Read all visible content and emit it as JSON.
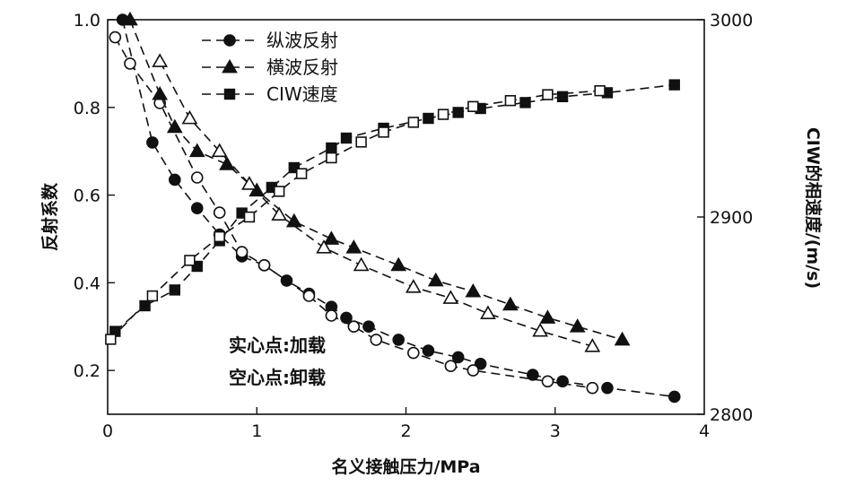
{
  "chart_data": {
    "type": "line",
    "xlabel": "名义接触压力/MPa",
    "ylabel_left": "反射系数",
    "ylabel_right": "CIW的相速度/(m/s)",
    "xlim": [
      0,
      4
    ],
    "ylim_left": [
      0.1,
      1.0
    ],
    "ylim_right": [
      2800,
      3000
    ],
    "x_ticks": [
      0,
      1,
      2,
      3,
      4
    ],
    "x_tick_labels": [
      "0",
      "1",
      "2",
      "3",
      "4"
    ],
    "y_left_ticks": [
      0.2,
      0.4,
      0.6,
      0.8,
      1.0
    ],
    "y_left_tick_labels": [
      "0.2",
      "0.4",
      "0.6",
      "0.8",
      "1.0"
    ],
    "y_right_ticks": [
      2800,
      2900,
      3000
    ],
    "y_right_tick_labels": [
      "2800",
      "2900",
      "3000"
    ],
    "legend_position": "top-center",
    "legend": [
      {
        "label": "纵波反射",
        "marker": "circle"
      },
      {
        "label": "横波反射",
        "marker": "triangle"
      },
      {
        "label": "CIW速度",
        "marker": "square"
      }
    ],
    "annotations": [
      "实心点:加载",
      "空心点:卸载"
    ],
    "series": [
      {
        "label_ref": 0,
        "filled": true,
        "axis": "left",
        "marker": "circle",
        "x": [
          0.1,
          0.3,
          0.45,
          0.6,
          0.75,
          0.9,
          1.05,
          1.2,
          1.35,
          1.5,
          1.6,
          1.75,
          1.95,
          2.15,
          2.35,
          2.5,
          2.85,
          3.05,
          3.35,
          3.8
        ],
        "y": [
          1.0,
          0.72,
          0.635,
          0.57,
          0.51,
          0.46,
          0.44,
          0.405,
          0.375,
          0.345,
          0.32,
          0.3,
          0.27,
          0.245,
          0.23,
          0.215,
          0.19,
          0.175,
          0.16,
          0.14
        ]
      },
      {
        "label_ref": 0,
        "filled": false,
        "axis": "left",
        "marker": "circle",
        "x": [
          0.05,
          0.15,
          0.35,
          0.6,
          0.75,
          0.9,
          1.05,
          1.35,
          1.5,
          1.65,
          1.8,
          2.05,
          2.3,
          2.45,
          2.95,
          3.25
        ],
        "y": [
          0.96,
          0.9,
          0.81,
          0.64,
          0.56,
          0.47,
          0.44,
          0.37,
          0.325,
          0.3,
          0.27,
          0.24,
          0.21,
          0.2,
          0.175,
          0.16
        ]
      },
      {
        "label_ref": 1,
        "filled": true,
        "axis": "left",
        "marker": "triangle",
        "x": [
          0.15,
          0.35,
          0.45,
          0.6,
          0.8,
          1.0,
          1.25,
          1.5,
          1.65,
          1.95,
          2.2,
          2.45,
          2.7,
          2.95,
          3.15,
          3.45
        ],
        "y": [
          1.0,
          0.83,
          0.755,
          0.7,
          0.67,
          0.61,
          0.54,
          0.5,
          0.48,
          0.44,
          0.405,
          0.38,
          0.35,
          0.32,
          0.3,
          0.27
        ]
      },
      {
        "label_ref": 1,
        "filled": false,
        "axis": "left",
        "marker": "triangle",
        "x": [
          0.35,
          0.55,
          0.75,
          0.95,
          1.15,
          1.45,
          1.7,
          2.05,
          2.3,
          2.55,
          2.9,
          3.25
        ],
        "y": [
          0.905,
          0.775,
          0.7,
          0.625,
          0.555,
          0.48,
          0.44,
          0.39,
          0.365,
          0.33,
          0.29,
          0.255
        ]
      },
      {
        "label_ref": 2,
        "filled": true,
        "axis": "right",
        "marker": "square",
        "x": [
          0.05,
          0.25,
          0.45,
          0.6,
          0.75,
          0.9,
          1.1,
          1.25,
          1.5,
          1.6,
          1.85,
          2.15,
          2.35,
          2.5,
          2.8,
          3.05,
          3.35,
          3.8
        ],
        "y": [
          2842,
          2855,
          2863,
          2875,
          2888,
          2902,
          2915,
          2925,
          2935,
          2940,
          2945,
          2950,
          2953,
          2955,
          2958,
          2961,
          2963,
          2967
        ]
      },
      {
        "label_ref": 2,
        "filled": false,
        "axis": "right",
        "marker": "square",
        "x": [
          0.02,
          0.3,
          0.55,
          0.75,
          0.95,
          1.15,
          1.3,
          1.5,
          1.7,
          1.85,
          2.05,
          2.25,
          2.45,
          2.7,
          2.95,
          3.3
        ],
        "y": [
          2838,
          2860,
          2878,
          2890,
          2900,
          2913,
          2922,
          2930,
          2938,
          2943,
          2948,
          2952,
          2956,
          2959,
          2962,
          2964
        ]
      }
    ]
  }
}
